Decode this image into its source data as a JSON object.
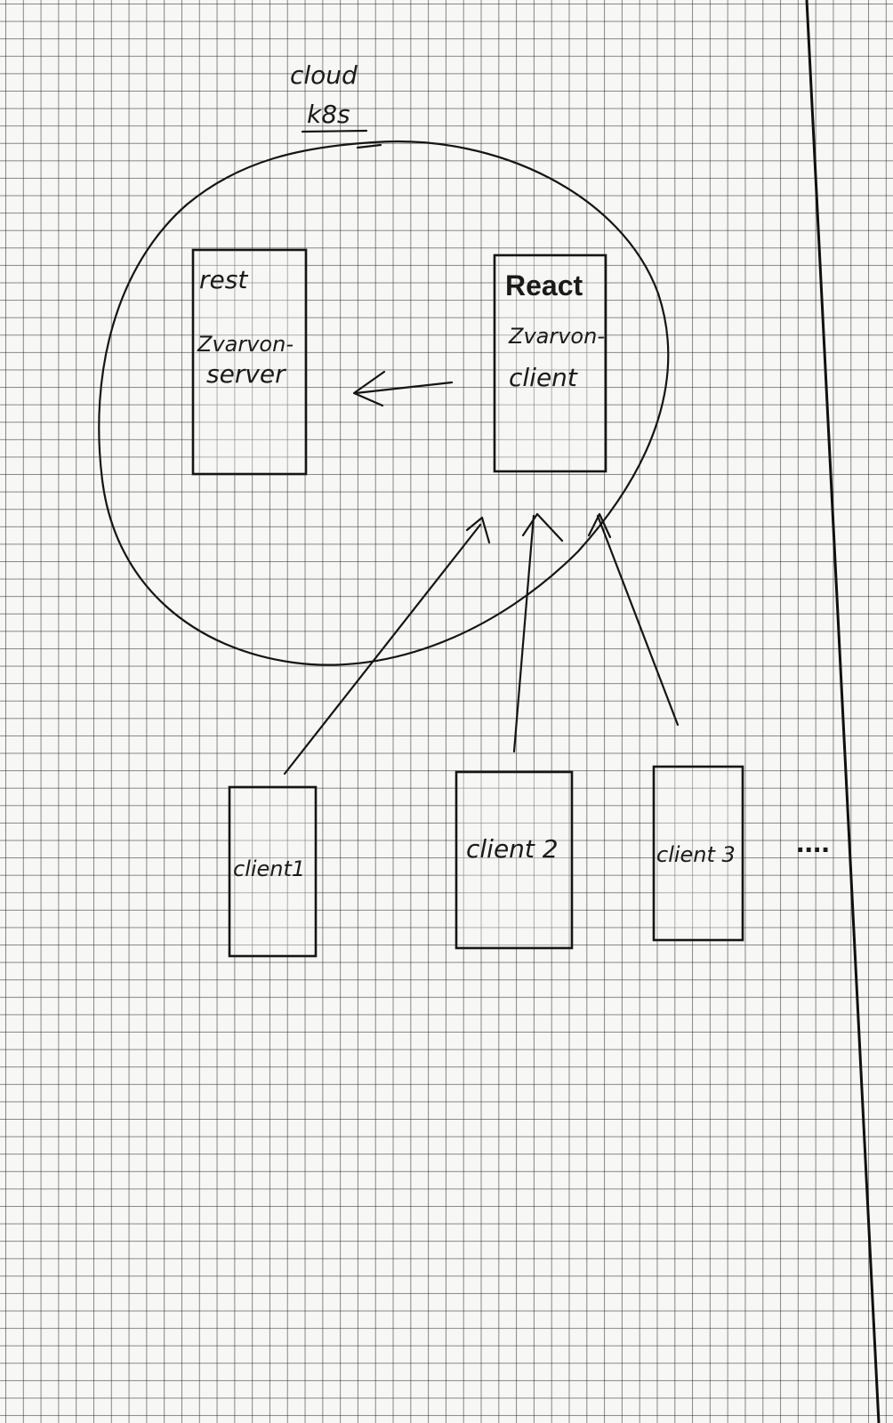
{
  "cloud": {
    "title": "cloud",
    "subtitle": "k8s"
  },
  "server_box": {
    "line1": "rest",
    "line2": "Zvarvon-",
    "line3": "server"
  },
  "client_box": {
    "line1": "React",
    "line2": "Zvarvon-",
    "line3": "client"
  },
  "clients": [
    {
      "label": "client1"
    },
    {
      "label": "client 2"
    },
    {
      "label": "client 3"
    }
  ],
  "ellipsis": "....",
  "colors": {
    "ink": "#151515",
    "paper": "#f7f7f5",
    "grid": "#3a3a3a"
  }
}
